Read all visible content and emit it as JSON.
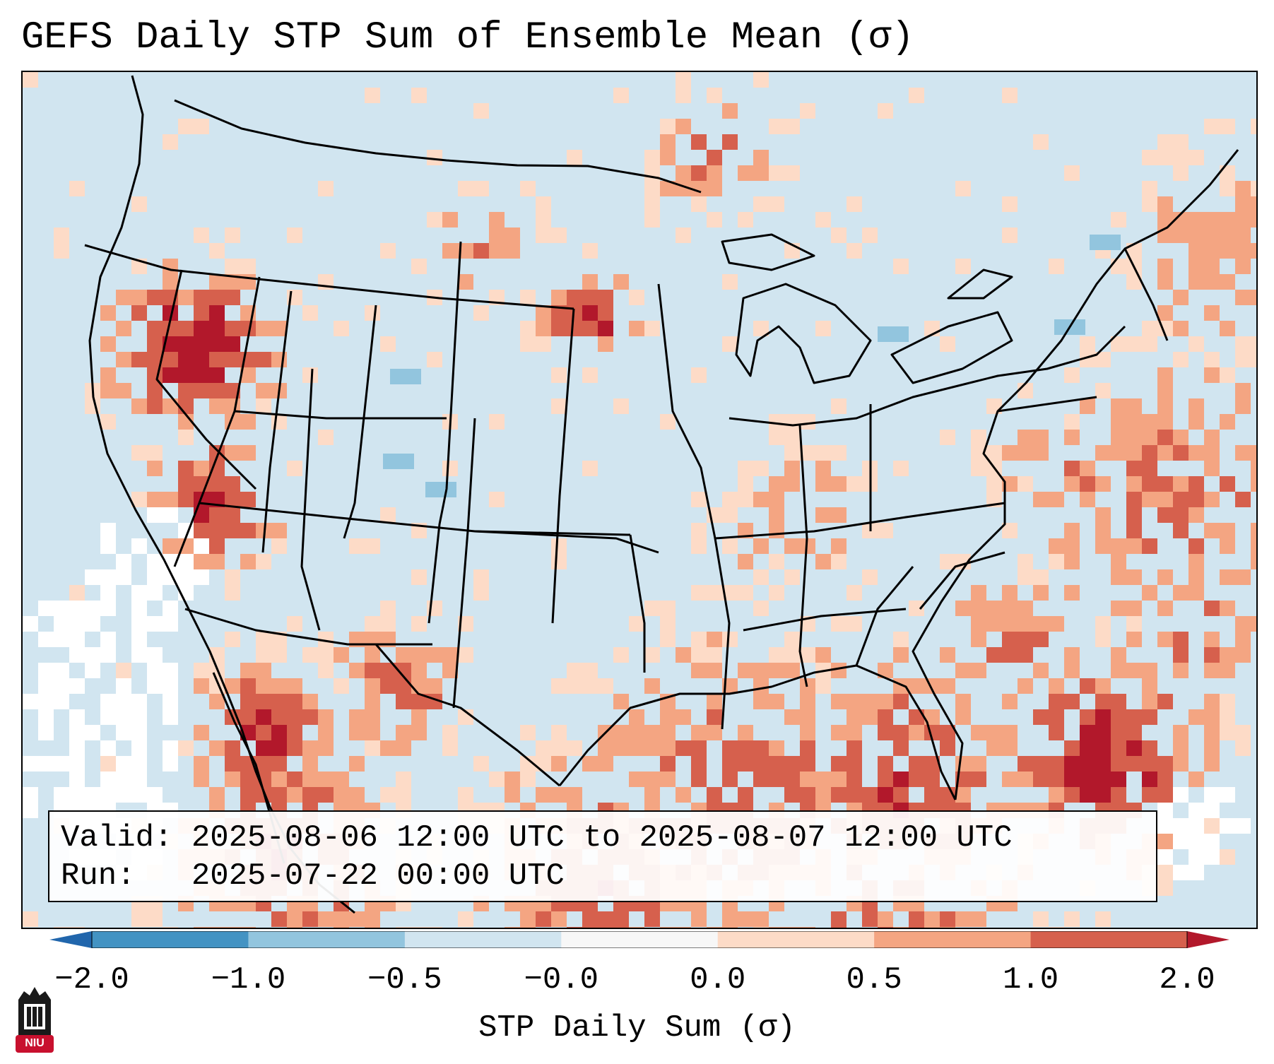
{
  "title": "GEFS Daily STP Sum of Ensemble Mean (σ)",
  "info": {
    "valid_line": "Valid: 2025-08-06 12:00 UTC to 2025-08-07 12:00 UTC",
    "run_line": "Run:   2025-07-22 00:00 UTC"
  },
  "colorbar": {
    "label": "STP Daily Sum (σ)",
    "ticks": [
      "−2.0",
      "−1.0",
      "−0.5",
      "−0.0",
      "0.0",
      "0.5",
      "1.0",
      "2.0"
    ],
    "colors": [
      "#4393c3",
      "#92c5de",
      "#d1e5f0",
      "#f7f7f7",
      "#fddbc7",
      "#f4a582",
      "#d6604d"
    ],
    "under_color": "#2166ac",
    "over_color": "#b2182b",
    "extend": "both"
  },
  "logo": {
    "text": "NIU",
    "icon": "niu-logo-icon",
    "color": "#c8102e"
  },
  "map": {
    "projection": "Lambert Conformal (CONUS)",
    "background_color": "#d1e5f0",
    "icon": "conus-map"
  }
}
